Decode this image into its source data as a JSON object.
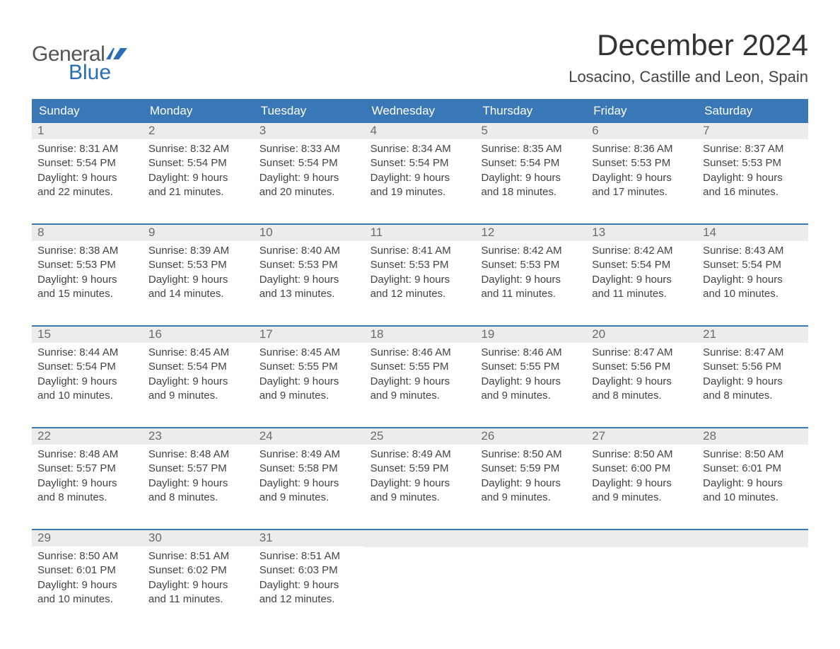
{
  "logo": {
    "text_top": "General",
    "text_bottom": "Blue",
    "flag_color": "#2a6db5"
  },
  "title": "December 2024",
  "location": "Losacino, Castille and Leon, Spain",
  "colors": {
    "header_bg": "#3a77b7",
    "header_text": "#ffffff",
    "daynum_bg": "#ececec",
    "body_text": "#444444",
    "daynum_text": "#6b6b6b",
    "week_border": "#3a77b7",
    "page_bg": "#ffffff"
  },
  "fonts": {
    "title_size_pt": 42,
    "location_size_pt": 22,
    "weekday_size_pt": 17,
    "daynum_size_pt": 17,
    "body_size_pt": 15
  },
  "weekdays": [
    "Sunday",
    "Monday",
    "Tuesday",
    "Wednesday",
    "Thursday",
    "Friday",
    "Saturday"
  ],
  "weeks": [
    [
      {
        "d": "1",
        "sr": "Sunrise: 8:31 AM",
        "ss": "Sunset: 5:54 PM",
        "dl1": "Daylight: 9 hours",
        "dl2": "and 22 minutes."
      },
      {
        "d": "2",
        "sr": "Sunrise: 8:32 AM",
        "ss": "Sunset: 5:54 PM",
        "dl1": "Daylight: 9 hours",
        "dl2": "and 21 minutes."
      },
      {
        "d": "3",
        "sr": "Sunrise: 8:33 AM",
        "ss": "Sunset: 5:54 PM",
        "dl1": "Daylight: 9 hours",
        "dl2": "and 20 minutes."
      },
      {
        "d": "4",
        "sr": "Sunrise: 8:34 AM",
        "ss": "Sunset: 5:54 PM",
        "dl1": "Daylight: 9 hours",
        "dl2": "and 19 minutes."
      },
      {
        "d": "5",
        "sr": "Sunrise: 8:35 AM",
        "ss": "Sunset: 5:54 PM",
        "dl1": "Daylight: 9 hours",
        "dl2": "and 18 minutes."
      },
      {
        "d": "6",
        "sr": "Sunrise: 8:36 AM",
        "ss": "Sunset: 5:53 PM",
        "dl1": "Daylight: 9 hours",
        "dl2": "and 17 minutes."
      },
      {
        "d": "7",
        "sr": "Sunrise: 8:37 AM",
        "ss": "Sunset: 5:53 PM",
        "dl1": "Daylight: 9 hours",
        "dl2": "and 16 minutes."
      }
    ],
    [
      {
        "d": "8",
        "sr": "Sunrise: 8:38 AM",
        "ss": "Sunset: 5:53 PM",
        "dl1": "Daylight: 9 hours",
        "dl2": "and 15 minutes."
      },
      {
        "d": "9",
        "sr": "Sunrise: 8:39 AM",
        "ss": "Sunset: 5:53 PM",
        "dl1": "Daylight: 9 hours",
        "dl2": "and 14 minutes."
      },
      {
        "d": "10",
        "sr": "Sunrise: 8:40 AM",
        "ss": "Sunset: 5:53 PM",
        "dl1": "Daylight: 9 hours",
        "dl2": "and 13 minutes."
      },
      {
        "d": "11",
        "sr": "Sunrise: 8:41 AM",
        "ss": "Sunset: 5:53 PM",
        "dl1": "Daylight: 9 hours",
        "dl2": "and 12 minutes."
      },
      {
        "d": "12",
        "sr": "Sunrise: 8:42 AM",
        "ss": "Sunset: 5:53 PM",
        "dl1": "Daylight: 9 hours",
        "dl2": "and 11 minutes."
      },
      {
        "d": "13",
        "sr": "Sunrise: 8:42 AM",
        "ss": "Sunset: 5:54 PM",
        "dl1": "Daylight: 9 hours",
        "dl2": "and 11 minutes."
      },
      {
        "d": "14",
        "sr": "Sunrise: 8:43 AM",
        "ss": "Sunset: 5:54 PM",
        "dl1": "Daylight: 9 hours",
        "dl2": "and 10 minutes."
      }
    ],
    [
      {
        "d": "15",
        "sr": "Sunrise: 8:44 AM",
        "ss": "Sunset: 5:54 PM",
        "dl1": "Daylight: 9 hours",
        "dl2": "and 10 minutes."
      },
      {
        "d": "16",
        "sr": "Sunrise: 8:45 AM",
        "ss": "Sunset: 5:54 PM",
        "dl1": "Daylight: 9 hours",
        "dl2": "and 9 minutes."
      },
      {
        "d": "17",
        "sr": "Sunrise: 8:45 AM",
        "ss": "Sunset: 5:55 PM",
        "dl1": "Daylight: 9 hours",
        "dl2": "and 9 minutes."
      },
      {
        "d": "18",
        "sr": "Sunrise: 8:46 AM",
        "ss": "Sunset: 5:55 PM",
        "dl1": "Daylight: 9 hours",
        "dl2": "and 9 minutes."
      },
      {
        "d": "19",
        "sr": "Sunrise: 8:46 AM",
        "ss": "Sunset: 5:55 PM",
        "dl1": "Daylight: 9 hours",
        "dl2": "and 9 minutes."
      },
      {
        "d": "20",
        "sr": "Sunrise: 8:47 AM",
        "ss": "Sunset: 5:56 PM",
        "dl1": "Daylight: 9 hours",
        "dl2": "and 8 minutes."
      },
      {
        "d": "21",
        "sr": "Sunrise: 8:47 AM",
        "ss": "Sunset: 5:56 PM",
        "dl1": "Daylight: 9 hours",
        "dl2": "and 8 minutes."
      }
    ],
    [
      {
        "d": "22",
        "sr": "Sunrise: 8:48 AM",
        "ss": "Sunset: 5:57 PM",
        "dl1": "Daylight: 9 hours",
        "dl2": "and 8 minutes."
      },
      {
        "d": "23",
        "sr": "Sunrise: 8:48 AM",
        "ss": "Sunset: 5:57 PM",
        "dl1": "Daylight: 9 hours",
        "dl2": "and 8 minutes."
      },
      {
        "d": "24",
        "sr": "Sunrise: 8:49 AM",
        "ss": "Sunset: 5:58 PM",
        "dl1": "Daylight: 9 hours",
        "dl2": "and 9 minutes."
      },
      {
        "d": "25",
        "sr": "Sunrise: 8:49 AM",
        "ss": "Sunset: 5:59 PM",
        "dl1": "Daylight: 9 hours",
        "dl2": "and 9 minutes."
      },
      {
        "d": "26",
        "sr": "Sunrise: 8:50 AM",
        "ss": "Sunset: 5:59 PM",
        "dl1": "Daylight: 9 hours",
        "dl2": "and 9 minutes."
      },
      {
        "d": "27",
        "sr": "Sunrise: 8:50 AM",
        "ss": "Sunset: 6:00 PM",
        "dl1": "Daylight: 9 hours",
        "dl2": "and 9 minutes."
      },
      {
        "d": "28",
        "sr": "Sunrise: 8:50 AM",
        "ss": "Sunset: 6:01 PM",
        "dl1": "Daylight: 9 hours",
        "dl2": "and 10 minutes."
      }
    ],
    [
      {
        "d": "29",
        "sr": "Sunrise: 8:50 AM",
        "ss": "Sunset: 6:01 PM",
        "dl1": "Daylight: 9 hours",
        "dl2": "and 10 minutes."
      },
      {
        "d": "30",
        "sr": "Sunrise: 8:51 AM",
        "ss": "Sunset: 6:02 PM",
        "dl1": "Daylight: 9 hours",
        "dl2": "and 11 minutes."
      },
      {
        "d": "31",
        "sr": "Sunrise: 8:51 AM",
        "ss": "Sunset: 6:03 PM",
        "dl1": "Daylight: 9 hours",
        "dl2": "and 12 minutes."
      },
      null,
      null,
      null,
      null
    ]
  ]
}
